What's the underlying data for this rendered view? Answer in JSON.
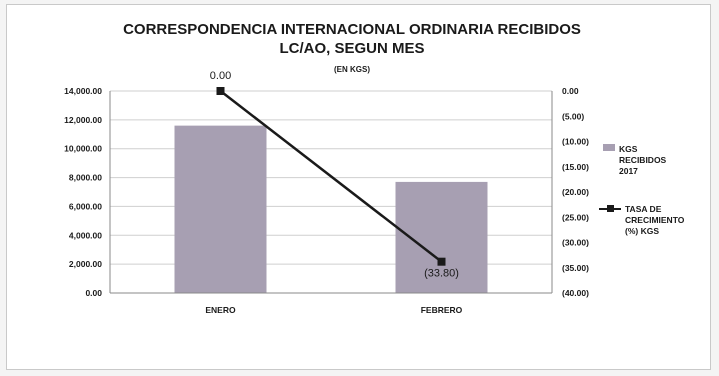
{
  "chart_data": {
    "type": "bar",
    "title_line1": "CORRESPONDENCIA INTERNACIONAL ORDINARIA RECIBIDOS",
    "title_line2": "LC/AO, SEGUN MES",
    "subtitle": "(EN KGS)",
    "categories": [
      "ENERO",
      "FEBRERO"
    ],
    "y_left": {
      "min": 0,
      "max": 14000,
      "step": 2000,
      "ticks": [
        "0.00",
        "2,000.00",
        "4,000.00",
        "6,000.00",
        "8,000.00",
        "10,000.00",
        "12,000.00",
        "14,000.00"
      ]
    },
    "y_right": {
      "min": -40,
      "max": 0,
      "step": 5,
      "ticks": [
        "0.00",
        "(5.00)",
        "(10.00)",
        "(15.00)",
        "(20.00)",
        "(25.00)",
        "(30.00)",
        "(35.00)",
        "(40.00)"
      ]
    },
    "series": [
      {
        "name_lines": [
          "KGS",
          "RECIBIDOS",
          "2017"
        ],
        "type": "bar",
        "axis": "left",
        "values": [
          11600,
          7700
        ],
        "color": "#a79fb2"
      },
      {
        "name_lines": [
          "TASA DE",
          "CRECIMIENTO",
          "(%) KGS"
        ],
        "type": "line",
        "axis": "right",
        "values": [
          0.0,
          -33.8
        ],
        "data_labels": [
          "0.00",
          "(33.80)"
        ],
        "color": "#1a1a1a"
      }
    ],
    "grid": true,
    "legend": "right"
  }
}
